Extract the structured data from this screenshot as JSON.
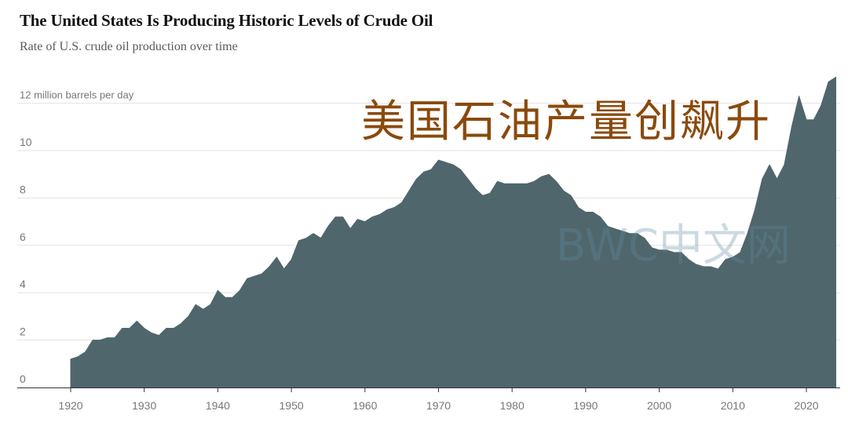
{
  "title": "The United States Is Producing Historic Levels of Crude Oil",
  "subtitle": "Rate of U.S. crude oil production over time",
  "overlay_text": "美国石油产量创飙升",
  "watermark_text": "BWC中文网",
  "colors": {
    "area": "#4f666c",
    "grid": "#e2e2e2",
    "axis": "#333333",
    "tick_text": "#777777",
    "overlay": "#8a4a0c"
  },
  "chart_data": {
    "type": "area",
    "title": "The United States Is Producing Historic Levels of Crude Oil",
    "subtitle": "Rate of U.S. crude oil production over time",
    "xlabel": "",
    "ylabel": "12 million barrels per day",
    "xlim": [
      1914,
      2025
    ],
    "ylim": [
      0,
      13
    ],
    "x_ticks": [
      1920,
      1930,
      1940,
      1950,
      1960,
      1970,
      1980,
      1990,
      2000,
      2010,
      2020
    ],
    "x_tick_labels": [
      "1920",
      "1930",
      "1940",
      "1950",
      "1960",
      "1970",
      "1980",
      "1990",
      "2000",
      "2010",
      "2020"
    ],
    "y_ticks": [
      0,
      2,
      4,
      6,
      8,
      10,
      12
    ],
    "y_tick_labels": [
      "0",
      "2",
      "4",
      "6",
      "8",
      "10",
      "12 million barrels per day"
    ],
    "grid": "horizontal",
    "series": [
      {
        "x": [
          1920,
          1921,
          1922,
          1923,
          1924,
          1925,
          1926,
          1927,
          1928,
          1929,
          1930,
          1931,
          1932,
          1933,
          1934,
          1935,
          1936,
          1937,
          1938,
          1939,
          1940,
          1941,
          1942,
          1943,
          1944,
          1945,
          1946,
          1947,
          1948,
          1949,
          1950,
          1951,
          1952,
          1953,
          1954,
          1955,
          1956,
          1957,
          1958,
          1959,
          1960,
          1961,
          1962,
          1963,
          1964,
          1965,
          1966,
          1967,
          1968,
          1969,
          1970,
          1971,
          1972,
          1973,
          1974,
          1975,
          1976,
          1977,
          1978,
          1979,
          1980,
          1981,
          1982,
          1983,
          1984,
          1985,
          1986,
          1987,
          1988,
          1989,
          1990,
          1991,
          1992,
          1993,
          1994,
          1995,
          1996,
          1997,
          1998,
          1999,
          2000,
          2001,
          2002,
          2003,
          2004,
          2005,
          2006,
          2007,
          2008,
          2009,
          2010,
          2011,
          2012,
          2013,
          2014,
          2015,
          2016,
          2017,
          2018,
          2019,
          2020,
          2021,
          2022,
          2023,
          2024
        ],
        "values": [
          1.2,
          1.3,
          1.5,
          2.0,
          2.0,
          2.1,
          2.1,
          2.5,
          2.5,
          2.8,
          2.5,
          2.3,
          2.2,
          2.5,
          2.5,
          2.7,
          3.0,
          3.5,
          3.3,
          3.5,
          4.1,
          3.8,
          3.8,
          4.1,
          4.6,
          4.7,
          4.8,
          5.1,
          5.5,
          5.0,
          5.4,
          6.2,
          6.3,
          6.5,
          6.3,
          6.8,
          7.2,
          7.2,
          6.7,
          7.1,
          7.0,
          7.2,
          7.3,
          7.5,
          7.6,
          7.8,
          8.3,
          8.8,
          9.1,
          9.2,
          9.6,
          9.5,
          9.4,
          9.2,
          8.8,
          8.4,
          8.1,
          8.2,
          8.7,
          8.6,
          8.6,
          8.6,
          8.6,
          8.7,
          8.9,
          9.0,
          8.7,
          8.3,
          8.1,
          7.6,
          7.4,
          7.4,
          7.2,
          6.8,
          6.7,
          6.6,
          6.5,
          6.5,
          6.3,
          5.9,
          5.8,
          5.8,
          5.7,
          5.7,
          5.4,
          5.2,
          5.1,
          5.1,
          5.0,
          5.4,
          5.5,
          5.7,
          6.5,
          7.5,
          8.8,
          9.4,
          8.8,
          9.4,
          11.0,
          12.3,
          11.3,
          11.3,
          11.9,
          12.9,
          13.1
        ]
      }
    ]
  }
}
